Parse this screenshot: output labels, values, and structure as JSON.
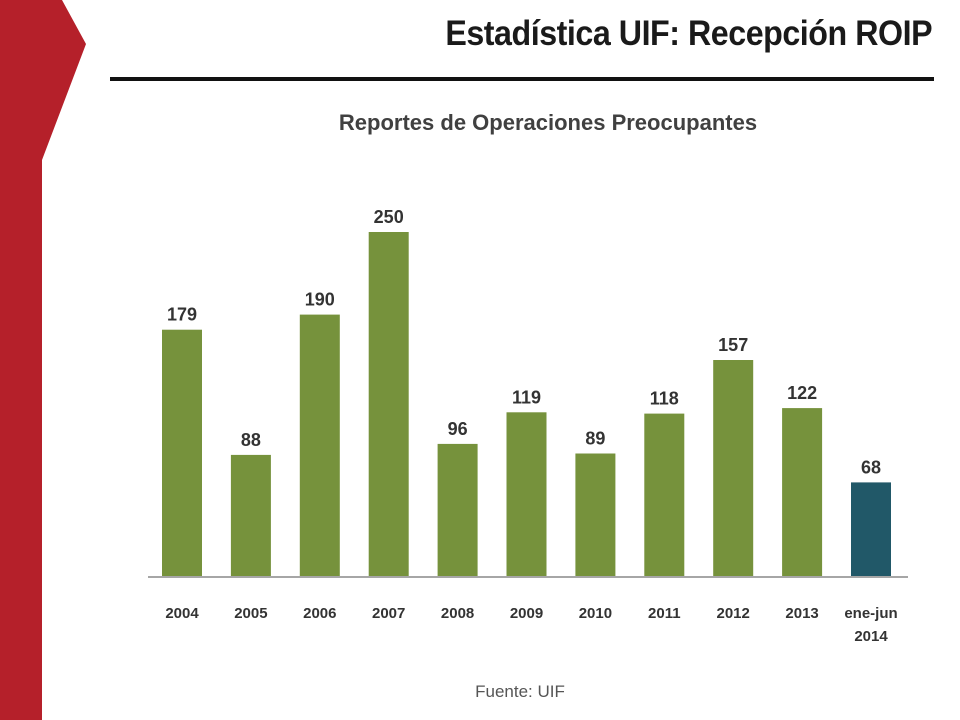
{
  "slide": {
    "title": "Estadística UIF: Recepción ROIP",
    "accent_color": "#B5202A",
    "source": "Fuente: UIF"
  },
  "chart_data": {
    "type": "bar",
    "title": "Reportes de Operaciones Preocupantes",
    "xlabel": "",
    "ylabel": "",
    "categories": [
      [
        "2004"
      ],
      [
        "2005"
      ],
      [
        "2006"
      ],
      [
        "2007"
      ],
      [
        "2008"
      ],
      [
        "2009"
      ],
      [
        "2010"
      ],
      [
        "2011"
      ],
      [
        "2012"
      ],
      [
        "2013"
      ],
      [
        "ene-jun",
        "2014"
      ]
    ],
    "values": [
      179,
      88,
      190,
      250,
      96,
      119,
      89,
      118,
      157,
      122,
      68
    ],
    "ylim": [
      0,
      250
    ],
    "grid": false,
    "legend": "none",
    "bar_colors": [
      "#76923C",
      "#76923C",
      "#76923C",
      "#76923C",
      "#76923C",
      "#76923C",
      "#76923C",
      "#76923C",
      "#76923C",
      "#76923C",
      "#215868"
    ],
    "axis_color": "#A6A6A6"
  }
}
